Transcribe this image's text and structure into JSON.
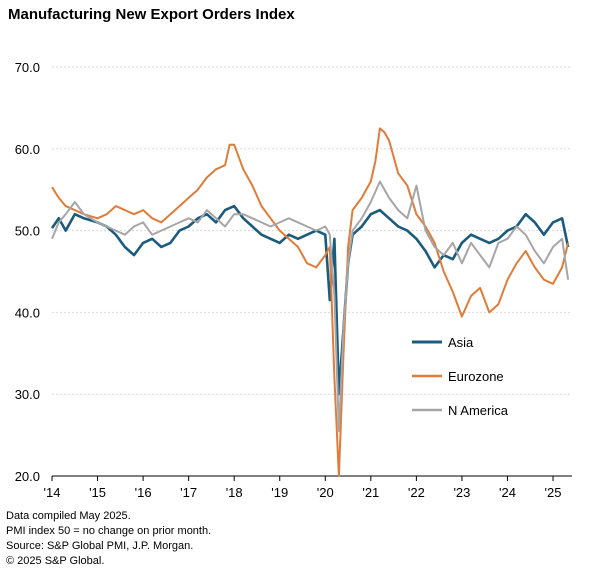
{
  "title": "Manufacturing New Export Orders Index",
  "notes": [
    "Data compiled May 2025.",
    "PMI index 50 = no change on prior month.",
    "Source: S&P Global PMI, J.P. Morgan.",
    "© 2025 S&P Global."
  ],
  "chart_data": {
    "type": "line",
    "title": "Manufacturing New Export Orders Index",
    "xlabel": "",
    "ylabel": "",
    "ylim": [
      20,
      70
    ],
    "yticks": [
      20,
      30,
      40,
      50,
      60,
      70
    ],
    "ytick_labels": [
      "20.0",
      "30.0",
      "40.0",
      "50.0",
      "60.0",
      "70.0"
    ],
    "xlim": [
      2014.0,
      2025.4167
    ],
    "xticks": [
      2014,
      2015,
      2016,
      2017,
      2018,
      2019,
      2020,
      2021,
      2022,
      2023,
      2024,
      2025
    ],
    "xtick_labels": [
      "'14",
      "'15",
      "'16",
      "'17",
      "'18",
      "'19",
      "'20",
      "'21",
      "'22",
      "'23",
      "'24",
      "'25"
    ],
    "grid": "horizontal",
    "legend": "lower-right",
    "series": [
      {
        "name": "Asia",
        "color": "#1b5b7d",
        "x": [
          2014.0,
          2014.15,
          2014.3,
          2014.5,
          2014.7,
          2015.0,
          2015.2,
          2015.4,
          2015.6,
          2015.8,
          2016.0,
          2016.2,
          2016.4,
          2016.6,
          2016.8,
          2017.0,
          2017.2,
          2017.4,
          2017.6,
          2017.8,
          2018.0,
          2018.2,
          2018.4,
          2018.6,
          2018.8,
          2019.0,
          2019.2,
          2019.4,
          2019.6,
          2019.8,
          2020.0,
          2020.1,
          2020.2,
          2020.3,
          2020.4,
          2020.5,
          2020.6,
          2020.8,
          2021.0,
          2021.2,
          2021.4,
          2021.6,
          2021.8,
          2022.0,
          2022.2,
          2022.4,
          2022.6,
          2022.8,
          2023.0,
          2023.2,
          2023.4,
          2023.6,
          2023.8,
          2024.0,
          2024.2,
          2024.4,
          2024.6,
          2024.8,
          2025.0,
          2025.2,
          2025.33
        ],
        "values": [
          50.3,
          51.5,
          50.0,
          52.0,
          51.5,
          51.0,
          50.5,
          49.5,
          48.0,
          47.0,
          48.5,
          49.0,
          48.0,
          48.5,
          50.0,
          50.5,
          51.5,
          52.0,
          51.0,
          52.5,
          53.0,
          51.5,
          50.5,
          49.5,
          49.0,
          48.5,
          49.5,
          49.0,
          49.5,
          50.0,
          49.5,
          41.5,
          49.0,
          30.0,
          38.0,
          46.0,
          49.5,
          50.5,
          52.0,
          52.5,
          51.5,
          50.5,
          50.0,
          49.0,
          47.5,
          45.5,
          47.0,
          46.5,
          48.5,
          49.5,
          49.0,
          48.5,
          49.0,
          50.0,
          50.5,
          52.0,
          51.0,
          49.5,
          51.0,
          51.5,
          48.0
        ]
      },
      {
        "name": "Eurozone",
        "color": "#e07b39",
        "x": [
          2014.0,
          2014.15,
          2014.3,
          2014.5,
          2014.7,
          2015.0,
          2015.2,
          2015.4,
          2015.6,
          2015.8,
          2016.0,
          2016.2,
          2016.4,
          2016.6,
          2016.8,
          2017.0,
          2017.2,
          2017.4,
          2017.6,
          2017.8,
          2017.9,
          2018.0,
          2018.2,
          2018.4,
          2018.6,
          2018.8,
          2019.0,
          2019.2,
          2019.4,
          2019.6,
          2019.8,
          2020.0,
          2020.1,
          2020.2,
          2020.3,
          2020.4,
          2020.5,
          2020.6,
          2020.8,
          2021.0,
          2021.1,
          2021.2,
          2021.3,
          2021.4,
          2021.6,
          2021.8,
          2022.0,
          2022.2,
          2022.4,
          2022.6,
          2022.8,
          2023.0,
          2023.2,
          2023.4,
          2023.6,
          2023.8,
          2024.0,
          2024.2,
          2024.4,
          2024.6,
          2024.8,
          2025.0,
          2025.2,
          2025.33
        ],
        "values": [
          55.3,
          54.0,
          53.0,
          52.5,
          52.0,
          51.5,
          52.0,
          53.0,
          52.5,
          52.0,
          52.5,
          51.5,
          51.0,
          52.0,
          53.0,
          54.0,
          55.0,
          56.5,
          57.5,
          58.0,
          60.5,
          60.5,
          57.5,
          55.5,
          53.0,
          51.5,
          50.0,
          49.0,
          48.0,
          46.0,
          45.5,
          47.0,
          48.0,
          32.0,
          20.0,
          35.0,
          48.0,
          52.5,
          54.0,
          56.0,
          58.5,
          62.5,
          62.0,
          61.0,
          57.0,
          55.5,
          52.0,
          50.5,
          48.5,
          45.0,
          42.5,
          39.5,
          42.0,
          43.0,
          40.0,
          41.0,
          44.0,
          46.0,
          47.5,
          45.5,
          44.0,
          43.5,
          45.5,
          48.5
        ]
      },
      {
        "name": "N America",
        "color": "#a6a6a6",
        "x": [
          2014.0,
          2014.15,
          2014.3,
          2014.5,
          2014.7,
          2015.0,
          2015.2,
          2015.4,
          2015.6,
          2015.8,
          2016.0,
          2016.2,
          2016.4,
          2016.6,
          2016.8,
          2017.0,
          2017.2,
          2017.4,
          2017.6,
          2017.8,
          2018.0,
          2018.2,
          2018.4,
          2018.6,
          2018.8,
          2019.0,
          2019.2,
          2019.4,
          2019.6,
          2019.8,
          2020.0,
          2020.1,
          2020.2,
          2020.3,
          2020.4,
          2020.5,
          2020.6,
          2020.8,
          2021.0,
          2021.2,
          2021.4,
          2021.6,
          2021.8,
          2022.0,
          2022.2,
          2022.4,
          2022.6,
          2022.8,
          2023.0,
          2023.2,
          2023.4,
          2023.6,
          2023.8,
          2024.0,
          2024.2,
          2024.4,
          2024.6,
          2024.8,
          2025.0,
          2025.2,
          2025.33
        ],
        "values": [
          49.0,
          51.0,
          52.0,
          53.5,
          52.0,
          51.0,
          50.5,
          50.0,
          49.5,
          50.5,
          51.0,
          49.5,
          50.0,
          50.5,
          51.0,
          51.5,
          51.0,
          52.5,
          51.5,
          50.5,
          52.0,
          52.0,
          51.5,
          51.0,
          50.5,
          51.0,
          51.5,
          51.0,
          50.5,
          50.0,
          50.5,
          49.5,
          42.0,
          25.5,
          38.0,
          46.0,
          50.0,
          51.5,
          53.5,
          56.0,
          54.0,
          52.5,
          51.5,
          55.5,
          50.0,
          48.0,
          47.0,
          48.5,
          46.0,
          48.5,
          47.0,
          45.5,
          48.5,
          49.0,
          50.5,
          49.5,
          47.5,
          46.0,
          48.0,
          49.0,
          44.0
        ]
      }
    ]
  }
}
